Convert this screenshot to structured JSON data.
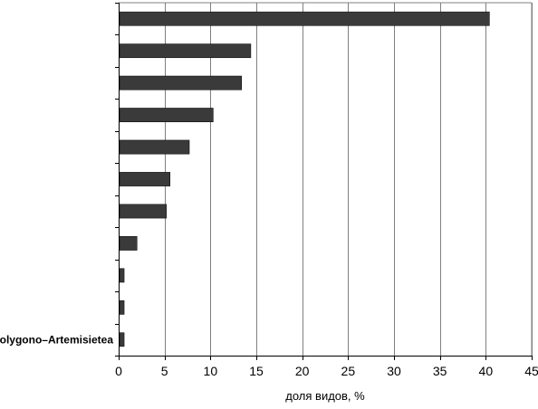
{
  "chart_data": {
    "type": "bar",
    "orientation": "horizontal",
    "categories": [
      "",
      "",
      "",
      "",
      "",
      "",
      "",
      "",
      "",
      "",
      "Polygono–Artemisietea"
    ],
    "values": [
      40.4,
      14.4,
      13.4,
      10.3,
      7.7,
      5.6,
      5.2,
      2.0,
      0.6,
      0.6,
      0.6
    ],
    "xlabel": "доля видов, %",
    "ylabel": "",
    "title": "",
    "xlim": [
      0,
      45
    ],
    "xticks": [
      0,
      5,
      10,
      15,
      20,
      25,
      30,
      35,
      40,
      45
    ],
    "grid": "vertical",
    "legend": "none",
    "bar_color": "#3a3a3a"
  }
}
